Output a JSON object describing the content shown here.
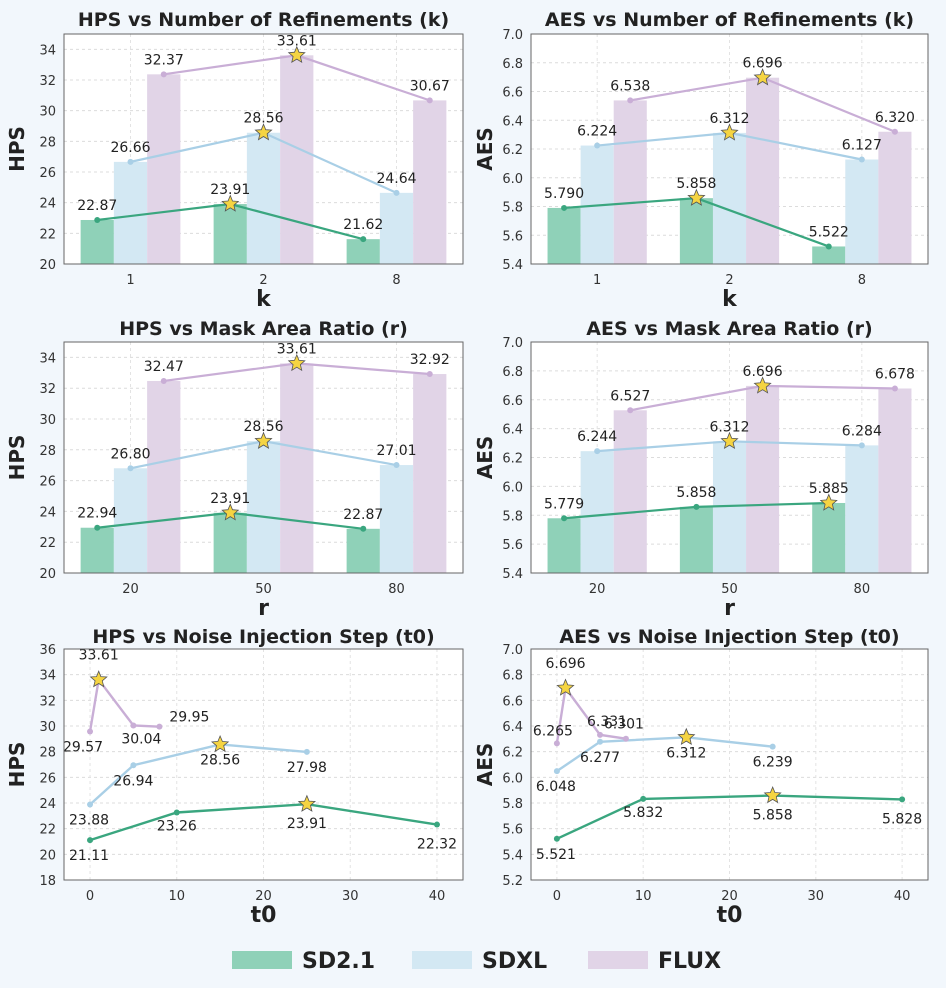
{
  "colors": {
    "SD2.1": "#8fd1b8",
    "SDXL": "#d3e8f3",
    "FLUX": "#e1d4e7",
    "SD2.1_line": "#3aa67f",
    "SDXL_line": "#a9cfe6",
    "FLUX_line": "#c9aed6",
    "star": "#f5d442"
  },
  "legend": [
    {
      "name": "SD2.1",
      "color": "#8fd1b8"
    },
    {
      "name": "SDXL",
      "color": "#d3e8f3"
    },
    {
      "name": "FLUX",
      "color": "#e1d4e7"
    }
  ],
  "chart_data": [
    {
      "type": "bar",
      "title": "HPS vs Number of Refinements (k)",
      "xlabel": "k",
      "ylabel": "HPS",
      "categories": [
        "1",
        "2",
        "8"
      ],
      "ylim": [
        20,
        35
      ],
      "yticks": [
        "20",
        "22",
        "24",
        "26",
        "28",
        "30",
        "32",
        "34"
      ],
      "series": [
        {
          "name": "SD2.1",
          "values": [
            22.87,
            23.91,
            21.62
          ],
          "labels": [
            "22.87",
            "23.91",
            "21.62"
          ]
        },
        {
          "name": "SDXL",
          "values": [
            26.66,
            28.56,
            24.64
          ],
          "labels": [
            "26.66",
            "28.56",
            "24.64"
          ]
        },
        {
          "name": "FLUX",
          "values": [
            32.37,
            33.61,
            30.67
          ],
          "labels": [
            "32.37",
            "33.61",
            "30.67"
          ]
        }
      ]
    },
    {
      "type": "bar",
      "title": "AES vs Number of Refinements (k)",
      "xlabel": "k",
      "ylabel": "AES",
      "categories": [
        "1",
        "2",
        "8"
      ],
      "ylim": [
        5.4,
        7.0
      ],
      "yticks": [
        "5.4",
        "5.6",
        "5.8",
        "6.0",
        "6.2",
        "6.4",
        "6.6",
        "6.8",
        "7.0"
      ],
      "series": [
        {
          "name": "SD2.1",
          "values": [
            5.79,
            5.858,
            5.522
          ],
          "labels": [
            "5.790",
            "5.858",
            "5.522"
          ]
        },
        {
          "name": "SDXL",
          "values": [
            6.224,
            6.312,
            6.127
          ],
          "labels": [
            "6.224",
            "6.312",
            "6.127"
          ]
        },
        {
          "name": "FLUX",
          "values": [
            6.538,
            6.696,
            6.32
          ],
          "labels": [
            "6.538",
            "6.696",
            "6.320"
          ]
        }
      ]
    },
    {
      "type": "bar",
      "title": "HPS vs Mask Area Ratio (r)",
      "xlabel": "r",
      "ylabel": "HPS",
      "categories": [
        "20",
        "50",
        "80"
      ],
      "ylim": [
        20,
        35
      ],
      "yticks": [
        "20",
        "22",
        "24",
        "26",
        "28",
        "30",
        "32",
        "34"
      ],
      "series": [
        {
          "name": "SD2.1",
          "values": [
            22.94,
            23.91,
            22.87
          ],
          "labels": [
            "22.94",
            "23.91",
            "22.87"
          ]
        },
        {
          "name": "SDXL",
          "values": [
            26.8,
            28.56,
            27.01
          ],
          "labels": [
            "26.80",
            "28.56",
            "27.01"
          ]
        },
        {
          "name": "FLUX",
          "values": [
            32.47,
            33.61,
            32.92
          ],
          "labels": [
            "32.47",
            "33.61",
            "32.92"
          ]
        }
      ]
    },
    {
      "type": "bar",
      "title": "AES vs Mask Area Ratio (r)",
      "xlabel": "r",
      "ylabel": "AES",
      "categories": [
        "20",
        "50",
        "80"
      ],
      "ylim": [
        5.4,
        7.0
      ],
      "yticks": [
        "5.4",
        "5.6",
        "5.8",
        "6.0",
        "6.2",
        "6.4",
        "6.6",
        "6.8",
        "7.0"
      ],
      "series": [
        {
          "name": "SD2.1",
          "values": [
            5.779,
            5.858,
            5.885
          ],
          "labels": [
            "5.779",
            "5.858",
            "5.885"
          ]
        },
        {
          "name": "SDXL",
          "values": [
            6.244,
            6.312,
            6.284
          ],
          "labels": [
            "6.244",
            "6.312",
            "6.284"
          ]
        },
        {
          "name": "FLUX",
          "values": [
            6.527,
            6.696,
            6.678
          ],
          "labels": [
            "6.527",
            "6.696",
            "6.678"
          ]
        }
      ]
    },
    {
      "type": "line",
      "title": "HPS vs Noise Injection Step (t0)",
      "xlabel": "t0",
      "ylabel": "HPS",
      "xlim": [
        -3,
        43
      ],
      "xticks": [
        "0",
        "10",
        "20",
        "30",
        "40"
      ],
      "ylim": [
        18,
        36
      ],
      "yticks": [
        "18",
        "20",
        "22",
        "24",
        "26",
        "28",
        "30",
        "32",
        "34",
        "36"
      ],
      "series": [
        {
          "name": "SD2.1",
          "x": [
            0,
            10,
            25,
            40
          ],
          "values": [
            21.11,
            23.26,
            23.91,
            22.32
          ],
          "labels": [
            "21.11",
            "23.26",
            "23.91",
            "22.32"
          ],
          "star": 2
        },
        {
          "name": "SDXL",
          "x": [
            0,
            5,
            15,
            25
          ],
          "values": [
            23.88,
            26.94,
            28.56,
            27.98
          ],
          "labels": [
            "23.88",
            "26.94",
            "28.56",
            "27.98"
          ],
          "star": 2
        },
        {
          "name": "FLUX",
          "x": [
            0,
            1,
            5,
            8
          ],
          "values": [
            29.57,
            33.61,
            30.04,
            29.95
          ],
          "labels": [
            "29.57",
            "33.61",
            "30.04",
            "29.95"
          ],
          "star": 1
        }
      ]
    },
    {
      "type": "line",
      "title": "AES vs Noise Injection Step (t0)",
      "xlabel": "t0",
      "ylabel": "AES",
      "xlim": [
        -3,
        43
      ],
      "xticks": [
        "0",
        "10",
        "20",
        "30",
        "40"
      ],
      "ylim": [
        5.2,
        7.0
      ],
      "yticks": [
        "5.2",
        "5.4",
        "5.6",
        "5.8",
        "6.0",
        "6.2",
        "6.4",
        "6.6",
        "6.8",
        "7.0"
      ],
      "series": [
        {
          "name": "SD2.1",
          "x": [
            0,
            10,
            25,
            40
          ],
          "values": [
            5.521,
            5.832,
            5.858,
            5.828
          ],
          "labels": [
            "5.521",
            "5.832",
            "5.858",
            "5.828"
          ],
          "star": 2
        },
        {
          "name": "SDXL",
          "x": [
            0,
            5,
            15,
            25
          ],
          "values": [
            6.048,
            6.277,
            6.312,
            6.239
          ],
          "labels": [
            "6.048",
            "6.277",
            "6.312",
            "6.239"
          ],
          "star": 2
        },
        {
          "name": "FLUX",
          "x": [
            0,
            1,
            5,
            8
          ],
          "values": [
            6.265,
            6.696,
            6.331,
            6.301
          ],
          "labels": [
            "6.265",
            "6.696",
            "6.331",
            "6.301"
          ],
          "star": 1
        }
      ]
    }
  ]
}
